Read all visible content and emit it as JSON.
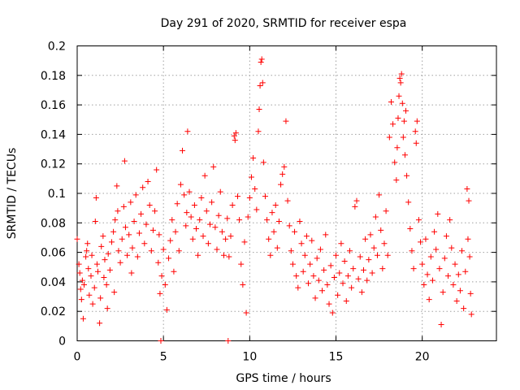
{
  "chart_data": {
    "type": "scatter",
    "title": "Day 291 of 2020, SRMTID for receiver espa",
    "xlabel": "GPS time / hours",
    "ylabel": "SRMTID / TECUs",
    "xlim": [
      0,
      24.3
    ],
    "ylim": [
      0,
      0.2
    ],
    "xticks": [
      0,
      5,
      10,
      15,
      20
    ],
    "yticks": [
      0,
      0.02,
      0.04,
      0.06,
      0.08,
      0.1,
      0.12,
      0.14,
      0.16,
      0.18,
      0.2
    ],
    "xtick_labels": [
      "0",
      "5",
      "10",
      "15",
      "20"
    ],
    "ytick_labels": [
      "0",
      "0.02",
      "0.04",
      "0.06",
      "0.08",
      "0.1",
      "0.12",
      "0.14",
      "0.16",
      "0.18",
      "0.2"
    ],
    "grid": true,
    "marker": "+",
    "color": "#ff0000",
    "series": [
      {
        "name": "SRMTID",
        "points": [
          [
            0.0,
            0.069
          ],
          [
            0.1,
            0.052
          ],
          [
            0.15,
            0.046
          ],
          [
            0.2,
            0.035
          ],
          [
            0.25,
            0.028
          ],
          [
            0.3,
            0.041
          ],
          [
            0.35,
            0.015
          ],
          [
            0.4,
            0.038
          ],
          [
            0.5,
            0.057
          ],
          [
            0.55,
            0.061
          ],
          [
            0.6,
            0.066
          ],
          [
            0.65,
            0.049
          ],
          [
            0.7,
            0.031
          ],
          [
            0.8,
            0.044
          ],
          [
            0.85,
            0.058
          ],
          [
            0.9,
            0.025
          ],
          [
            1.0,
            0.036
          ],
          [
            1.05,
            0.081
          ],
          [
            1.1,
            0.097
          ],
          [
            1.15,
            0.052
          ],
          [
            1.2,
            0.047
          ],
          [
            1.3,
            0.012
          ],
          [
            1.35,
            0.029
          ],
          [
            1.4,
            0.064
          ],
          [
            1.5,
            0.071
          ],
          [
            1.55,
            0.043
          ],
          [
            1.6,
            0.055
          ],
          [
            1.7,
            0.038
          ],
          [
            1.75,
            0.022
          ],
          [
            1.8,
            0.059
          ],
          [
            1.9,
            0.048
          ],
          [
            2.0,
            0.067
          ],
          [
            2.1,
            0.074
          ],
          [
            2.15,
            0.033
          ],
          [
            2.2,
            0.082
          ],
          [
            2.3,
            0.105
          ],
          [
            2.35,
            0.088
          ],
          [
            2.4,
            0.061
          ],
          [
            2.5,
            0.053
          ],
          [
            2.6,
            0.069
          ],
          [
            2.7,
            0.091
          ],
          [
            2.75,
            0.122
          ],
          [
            2.8,
            0.077
          ],
          [
            2.9,
            0.058
          ],
          [
            3.0,
            0.072
          ],
          [
            3.1,
            0.094
          ],
          [
            3.15,
            0.046
          ],
          [
            3.2,
            0.063
          ],
          [
            3.3,
            0.081
          ],
          [
            3.4,
            0.099
          ],
          [
            3.5,
            0.057
          ],
          [
            3.6,
            0.073
          ],
          [
            3.7,
            0.086
          ],
          [
            3.8,
            0.104
          ],
          [
            3.9,
            0.066
          ],
          [
            4.0,
            0.079
          ],
          [
            4.1,
            0.108
          ],
          [
            4.2,
            0.092
          ],
          [
            4.3,
            0.061
          ],
          [
            4.4,
            0.075
          ],
          [
            4.5,
            0.088
          ],
          [
            4.6,
            0.116
          ],
          [
            4.7,
            0.053
          ],
          [
            4.75,
            0.072
          ],
          [
            4.8,
            0.032
          ],
          [
            4.85,
            0.0
          ],
          [
            4.9,
            0.044
          ],
          [
            5.0,
            0.062
          ],
          [
            5.1,
            0.038
          ],
          [
            5.2,
            0.021
          ],
          [
            5.3,
            0.056
          ],
          [
            5.4,
            0.068
          ],
          [
            5.5,
            0.082
          ],
          [
            5.6,
            0.047
          ],
          [
            5.7,
            0.074
          ],
          [
            5.8,
            0.093
          ],
          [
            5.9,
            0.061
          ],
          [
            6.0,
            0.106
          ],
          [
            6.1,
            0.129
          ],
          [
            6.2,
            0.099
          ],
          [
            6.3,
            0.078
          ],
          [
            6.35,
            0.087
          ],
          [
            6.4,
            0.142
          ],
          [
            6.5,
            0.101
          ],
          [
            6.6,
            0.084
          ],
          [
            6.7,
            0.069
          ],
          [
            6.8,
            0.092
          ],
          [
            6.9,
            0.076
          ],
          [
            7.0,
            0.058
          ],
          [
            7.1,
            0.082
          ],
          [
            7.2,
            0.097
          ],
          [
            7.3,
            0.071
          ],
          [
            7.4,
            0.112
          ],
          [
            7.5,
            0.088
          ],
          [
            7.6,
            0.066
          ],
          [
            7.7,
            0.079
          ],
          [
            7.8,
            0.094
          ],
          [
            7.9,
            0.118
          ],
          [
            8.0,
            0.077
          ],
          [
            8.1,
            0.062
          ],
          [
            8.2,
            0.085
          ],
          [
            8.3,
            0.101
          ],
          [
            8.4,
            0.074
          ],
          [
            8.5,
            0.058
          ],
          [
            8.6,
            0.069
          ],
          [
            8.7,
            0.083
          ],
          [
            8.75,
            0.0
          ],
          [
            8.8,
            0.057
          ],
          [
            8.9,
            0.071
          ],
          [
            9.0,
            0.092
          ],
          [
            9.1,
            0.139
          ],
          [
            9.15,
            0.136
          ],
          [
            9.2,
            0.141
          ],
          [
            9.3,
            0.098
          ],
          [
            9.4,
            0.082
          ],
          [
            9.5,
            0.052
          ],
          [
            9.6,
            0.038
          ],
          [
            9.7,
            0.067
          ],
          [
            9.8,
            0.019
          ],
          [
            9.9,
            0.084
          ],
          [
            10.0,
            0.097
          ],
          [
            10.1,
            0.111
          ],
          [
            10.2,
            0.124
          ],
          [
            10.3,
            0.103
          ],
          [
            10.4,
            0.089
          ],
          [
            10.5,
            0.142
          ],
          [
            10.55,
            0.157
          ],
          [
            10.6,
            0.173
          ],
          [
            10.65,
            0.189
          ],
          [
            10.7,
            0.191
          ],
          [
            10.75,
            0.175
          ],
          [
            10.8,
            0.121
          ],
          [
            10.9,
            0.098
          ],
          [
            11.0,
            0.082
          ],
          [
            11.1,
            0.069
          ],
          [
            11.2,
            0.058
          ],
          [
            11.3,
            0.087
          ],
          [
            11.4,
            0.074
          ],
          [
            11.5,
            0.092
          ],
          [
            11.6,
            0.063
          ],
          [
            11.7,
            0.081
          ],
          [
            11.8,
            0.106
          ],
          [
            11.9,
            0.113
          ],
          [
            12.0,
            0.118
          ],
          [
            12.1,
            0.149
          ],
          [
            12.2,
            0.095
          ],
          [
            12.3,
            0.078
          ],
          [
            12.4,
            0.061
          ],
          [
            12.5,
            0.052
          ],
          [
            12.6,
            0.074
          ],
          [
            12.7,
            0.044
          ],
          [
            12.8,
            0.036
          ],
          [
            12.9,
            0.081
          ],
          [
            13.0,
            0.066
          ],
          [
            13.1,
            0.047
          ],
          [
            13.2,
            0.058
          ],
          [
            13.3,
            0.071
          ],
          [
            13.4,
            0.039
          ],
          [
            13.5,
            0.052
          ],
          [
            13.6,
            0.068
          ],
          [
            13.7,
            0.044
          ],
          [
            13.8,
            0.029
          ],
          [
            13.9,
            0.056
          ],
          [
            14.0,
            0.041
          ],
          [
            14.1,
            0.062
          ],
          [
            14.2,
            0.034
          ],
          [
            14.3,
            0.048
          ],
          [
            14.4,
            0.072
          ],
          [
            14.5,
            0.038
          ],
          [
            14.6,
            0.025
          ],
          [
            14.7,
            0.051
          ],
          [
            14.8,
            0.019
          ],
          [
            14.9,
            0.043
          ],
          [
            15.0,
            0.058
          ],
          [
            15.1,
            0.031
          ],
          [
            15.2,
            0.046
          ],
          [
            15.3,
            0.066
          ],
          [
            15.4,
            0.039
          ],
          [
            15.5,
            0.054
          ],
          [
            15.6,
            0.027
          ],
          [
            15.7,
            0.044
          ],
          [
            15.8,
            0.061
          ],
          [
            15.9,
            0.036
          ],
          [
            16.0,
            0.049
          ],
          [
            16.1,
            0.091
          ],
          [
            16.2,
            0.095
          ],
          [
            16.3,
            0.042
          ],
          [
            16.4,
            0.057
          ],
          [
            16.5,
            0.033
          ],
          [
            16.6,
            0.048
          ],
          [
            16.7,
            0.069
          ],
          [
            16.8,
            0.041
          ],
          [
            16.9,
            0.055
          ],
          [
            17.0,
            0.072
          ],
          [
            17.1,
            0.046
          ],
          [
            17.2,
            0.063
          ],
          [
            17.3,
            0.084
          ],
          [
            17.4,
            0.058
          ],
          [
            17.5,
            0.099
          ],
          [
            17.6,
            0.075
          ],
          [
            17.7,
            0.049
          ],
          [
            17.8,
            0.066
          ],
          [
            17.9,
            0.088
          ],
          [
            18.0,
            0.058
          ],
          [
            18.1,
            0.138
          ],
          [
            18.2,
            0.162
          ],
          [
            18.3,
            0.147
          ],
          [
            18.4,
            0.121
          ],
          [
            18.5,
            0.109
          ],
          [
            18.55,
            0.131
          ],
          [
            18.6,
            0.151
          ],
          [
            18.65,
            0.166
          ],
          [
            18.7,
            0.178
          ],
          [
            18.75,
            0.175
          ],
          [
            18.8,
            0.181
          ],
          [
            18.85,
            0.161
          ],
          [
            18.9,
            0.138
          ],
          [
            18.95,
            0.149
          ],
          [
            19.0,
            0.126
          ],
          [
            19.05,
            0.156
          ],
          [
            19.1,
            0.112
          ],
          [
            19.2,
            0.094
          ],
          [
            19.3,
            0.076
          ],
          [
            19.4,
            0.061
          ],
          [
            19.5,
            0.049
          ],
          [
            19.6,
            0.142
          ],
          [
            19.65,
            0.134
          ],
          [
            19.7,
            0.149
          ],
          [
            19.8,
            0.082
          ],
          [
            19.9,
            0.067
          ],
          [
            20.0,
            0.052
          ],
          [
            20.1,
            0.038
          ],
          [
            20.2,
            0.069
          ],
          [
            20.3,
            0.045
          ],
          [
            20.4,
            0.028
          ],
          [
            20.5,
            0.057
          ],
          [
            20.6,
            0.041
          ],
          [
            20.7,
            0.074
          ],
          [
            20.8,
            0.062
          ],
          [
            20.9,
            0.086
          ],
          [
            21.0,
            0.049
          ],
          [
            21.1,
            0.011
          ],
          [
            21.2,
            0.033
          ],
          [
            21.3,
            0.056
          ],
          [
            21.4,
            0.071
          ],
          [
            21.5,
            0.044
          ],
          [
            21.6,
            0.082
          ],
          [
            21.7,
            0.063
          ],
          [
            21.8,
            0.038
          ],
          [
            21.9,
            0.052
          ],
          [
            22.0,
            0.027
          ],
          [
            22.1,
            0.045
          ],
          [
            22.2,
            0.034
          ],
          [
            22.3,
            0.061
          ],
          [
            22.4,
            0.022
          ],
          [
            22.5,
            0.047
          ],
          [
            22.6,
            0.103
          ],
          [
            22.65,
            0.069
          ],
          [
            22.7,
            0.095
          ],
          [
            22.75,
            0.057
          ],
          [
            22.8,
            0.032
          ],
          [
            22.85,
            0.018
          ]
        ]
      }
    ]
  }
}
